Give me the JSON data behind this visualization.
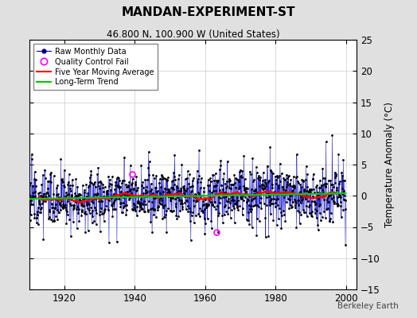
{
  "title": "MANDAN-EXPERIMENT-ST",
  "subtitle": "46.800 N, 100.900 W (United States)",
  "watermark": "Berkeley Earth",
  "ylabel": "Temperature Anomaly (°C)",
  "xlim": [
    1910,
    2003
  ],
  "ylim": [
    -15,
    25
  ],
  "yticks": [
    -15,
    -10,
    -5,
    0,
    5,
    10,
    15,
    20,
    25
  ],
  "xticks": [
    1920,
    1940,
    1960,
    1980,
    2000
  ],
  "bg_color": "#e0e0e0",
  "plot_bg_color": "#ffffff",
  "line_color": "#0000cc",
  "marker_color": "#000000",
  "qc_color": "#ff00ff",
  "ma_color": "#ff0000",
  "trend_color": "#00cc00",
  "seed": 12,
  "n_years": 90,
  "start_year": 1910,
  "qc_fail_years": [
    1939.3,
    1963.2
  ],
  "qc_fail_vals": [
    3.5,
    -5.8
  ]
}
